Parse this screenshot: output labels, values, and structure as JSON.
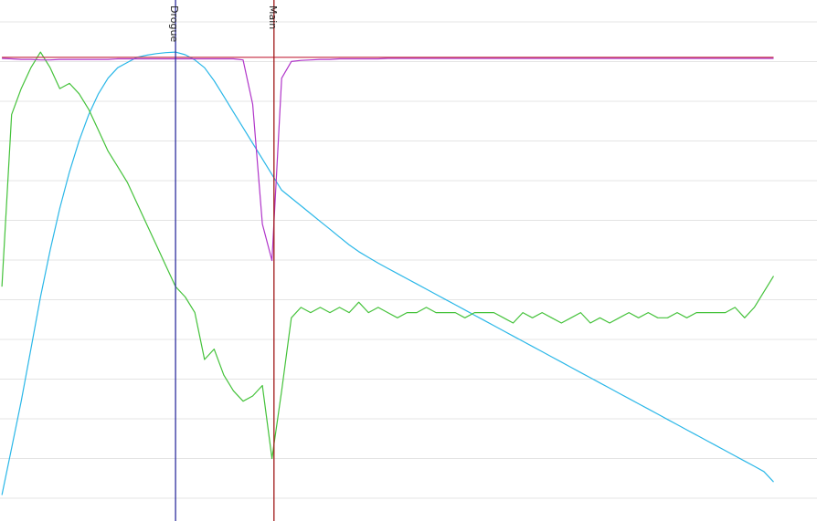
{
  "chart_data": {
    "type": "line",
    "title": "",
    "xlabel": "",
    "ylabel": "",
    "grid": true,
    "x": [
      0,
      1,
      2,
      3,
      4,
      5,
      6,
      7,
      8,
      9,
      10,
      11,
      12,
      13,
      14,
      15,
      16,
      17,
      18,
      19,
      20,
      21,
      22,
      23,
      24,
      25,
      26,
      27,
      28,
      29,
      30,
      31,
      32,
      33,
      34,
      35,
      36,
      37,
      38,
      39,
      40,
      41,
      42,
      43,
      44,
      45,
      46,
      47,
      48,
      49,
      50,
      51,
      52,
      53,
      54,
      55,
      56,
      57,
      58,
      59,
      60,
      61,
      62,
      63,
      64,
      65,
      66,
      67,
      68,
      69,
      70,
      71,
      72,
      73,
      74,
      75,
      76,
      77,
      78,
      79,
      80
    ],
    "xlim": [
      -0.2,
      84.5
    ],
    "ylim": [
      0,
      100
    ],
    "events": [
      {
        "label": "Drogue",
        "x": 18.0,
        "color": "#2e2e9e"
      },
      {
        "label": "Main",
        "x": 28.2,
        "color": "#a01818"
      }
    ],
    "series": [
      {
        "color": "#2ab7e8",
        "values": [
          5,
          14,
          23,
          33,
          43,
          52,
          60,
          67,
          73,
          78,
          82,
          85,
          87,
          88,
          89,
          89.4,
          89.7,
          89.9,
          90,
          89.5,
          88.5,
          87,
          84.5,
          81.5,
          78.5,
          75.5,
          72.5,
          69.5,
          66.5,
          63.5,
          62,
          60.5,
          59,
          57.5,
          56,
          54.5,
          53,
          51.7,
          50.6,
          49.5,
          48.5,
          47.5,
          46.5,
          45.5,
          44.5,
          43.5,
          42.5,
          41.5,
          40.5,
          39.5,
          38.5,
          37.5,
          36.5,
          35.5,
          34.5,
          33.5,
          32.5,
          31.5,
          30.5,
          29.5,
          28.5,
          27.5,
          26.5,
          25.5,
          24.5,
          23.5,
          22.5,
          21.5,
          20.5,
          19.5,
          18.5,
          17.5,
          16.5,
          15.5,
          14.5,
          13.5,
          12.5,
          11.5,
          10.5,
          9.5,
          7.5
        ]
      },
      {
        "color": "#44c23a",
        "values": [
          45,
          78,
          83,
          87,
          90,
          87,
          83,
          84,
          82,
          79,
          75,
          71,
          68,
          65,
          61,
          57,
          53,
          49,
          45,
          43,
          40,
          31,
          33,
          28,
          25,
          23,
          24,
          26,
          12,
          25,
          39,
          41,
          40,
          41,
          40,
          41,
          40,
          42,
          40,
          41,
          40,
          39,
          40,
          40,
          41,
          40,
          40,
          40,
          39,
          40,
          40,
          40,
          39,
          38,
          40,
          39,
          40,
          39,
          38,
          39,
          40,
          38,
          39,
          38,
          39,
          40,
          39,
          40,
          39,
          39,
          40,
          39,
          40,
          40,
          40,
          40,
          41,
          39,
          41,
          44,
          47
        ]
      },
      {
        "color": "#b035c9",
        "values": [
          88.8,
          88.7,
          88.6,
          88.6,
          88.5,
          88.5,
          88.6,
          88.6,
          88.6,
          88.6,
          88.6,
          88.6,
          88.7,
          88.7,
          88.7,
          88.7,
          88.7,
          88.7,
          88.7,
          88.7,
          88.7,
          88.7,
          88.7,
          88.7,
          88.7,
          88.5,
          80,
          57,
          50,
          85,
          88.2,
          88.4,
          88.5,
          88.6,
          88.6,
          88.7,
          88.7,
          88.7,
          88.7,
          88.7,
          88.8,
          88.8,
          88.8,
          88.8,
          88.8,
          88.8,
          88.8,
          88.8,
          88.8,
          88.8,
          88.8,
          88.8,
          88.8,
          88.8,
          88.8,
          88.8,
          88.8,
          88.8,
          88.8,
          88.8,
          88.8,
          88.8,
          88.8,
          88.8,
          88.8,
          88.8,
          88.8,
          88.8,
          88.8,
          88.8,
          88.8,
          88.8,
          88.8,
          88.8,
          88.8,
          88.8,
          88.8,
          88.8,
          88.8,
          88.8,
          88.8
        ]
      },
      {
        "color": "#c4283e",
        "values": [
          89,
          89,
          89,
          89,
          89,
          89,
          89,
          89,
          89,
          89,
          89,
          89,
          89,
          89,
          89,
          89,
          89,
          89,
          89,
          89,
          89,
          89,
          89,
          89,
          89,
          89,
          89,
          89,
          89,
          89,
          89,
          89,
          89,
          89,
          89,
          89,
          89,
          89,
          89,
          89,
          89,
          89,
          89,
          89,
          89,
          89,
          89,
          89,
          89,
          89,
          89,
          89,
          89,
          89,
          89,
          89,
          89,
          89,
          89,
          89,
          89,
          89,
          89,
          89,
          89,
          89,
          89,
          89,
          89,
          89,
          89,
          89,
          89,
          89,
          89,
          89,
          89,
          89,
          89,
          89,
          89
        ]
      }
    ]
  }
}
